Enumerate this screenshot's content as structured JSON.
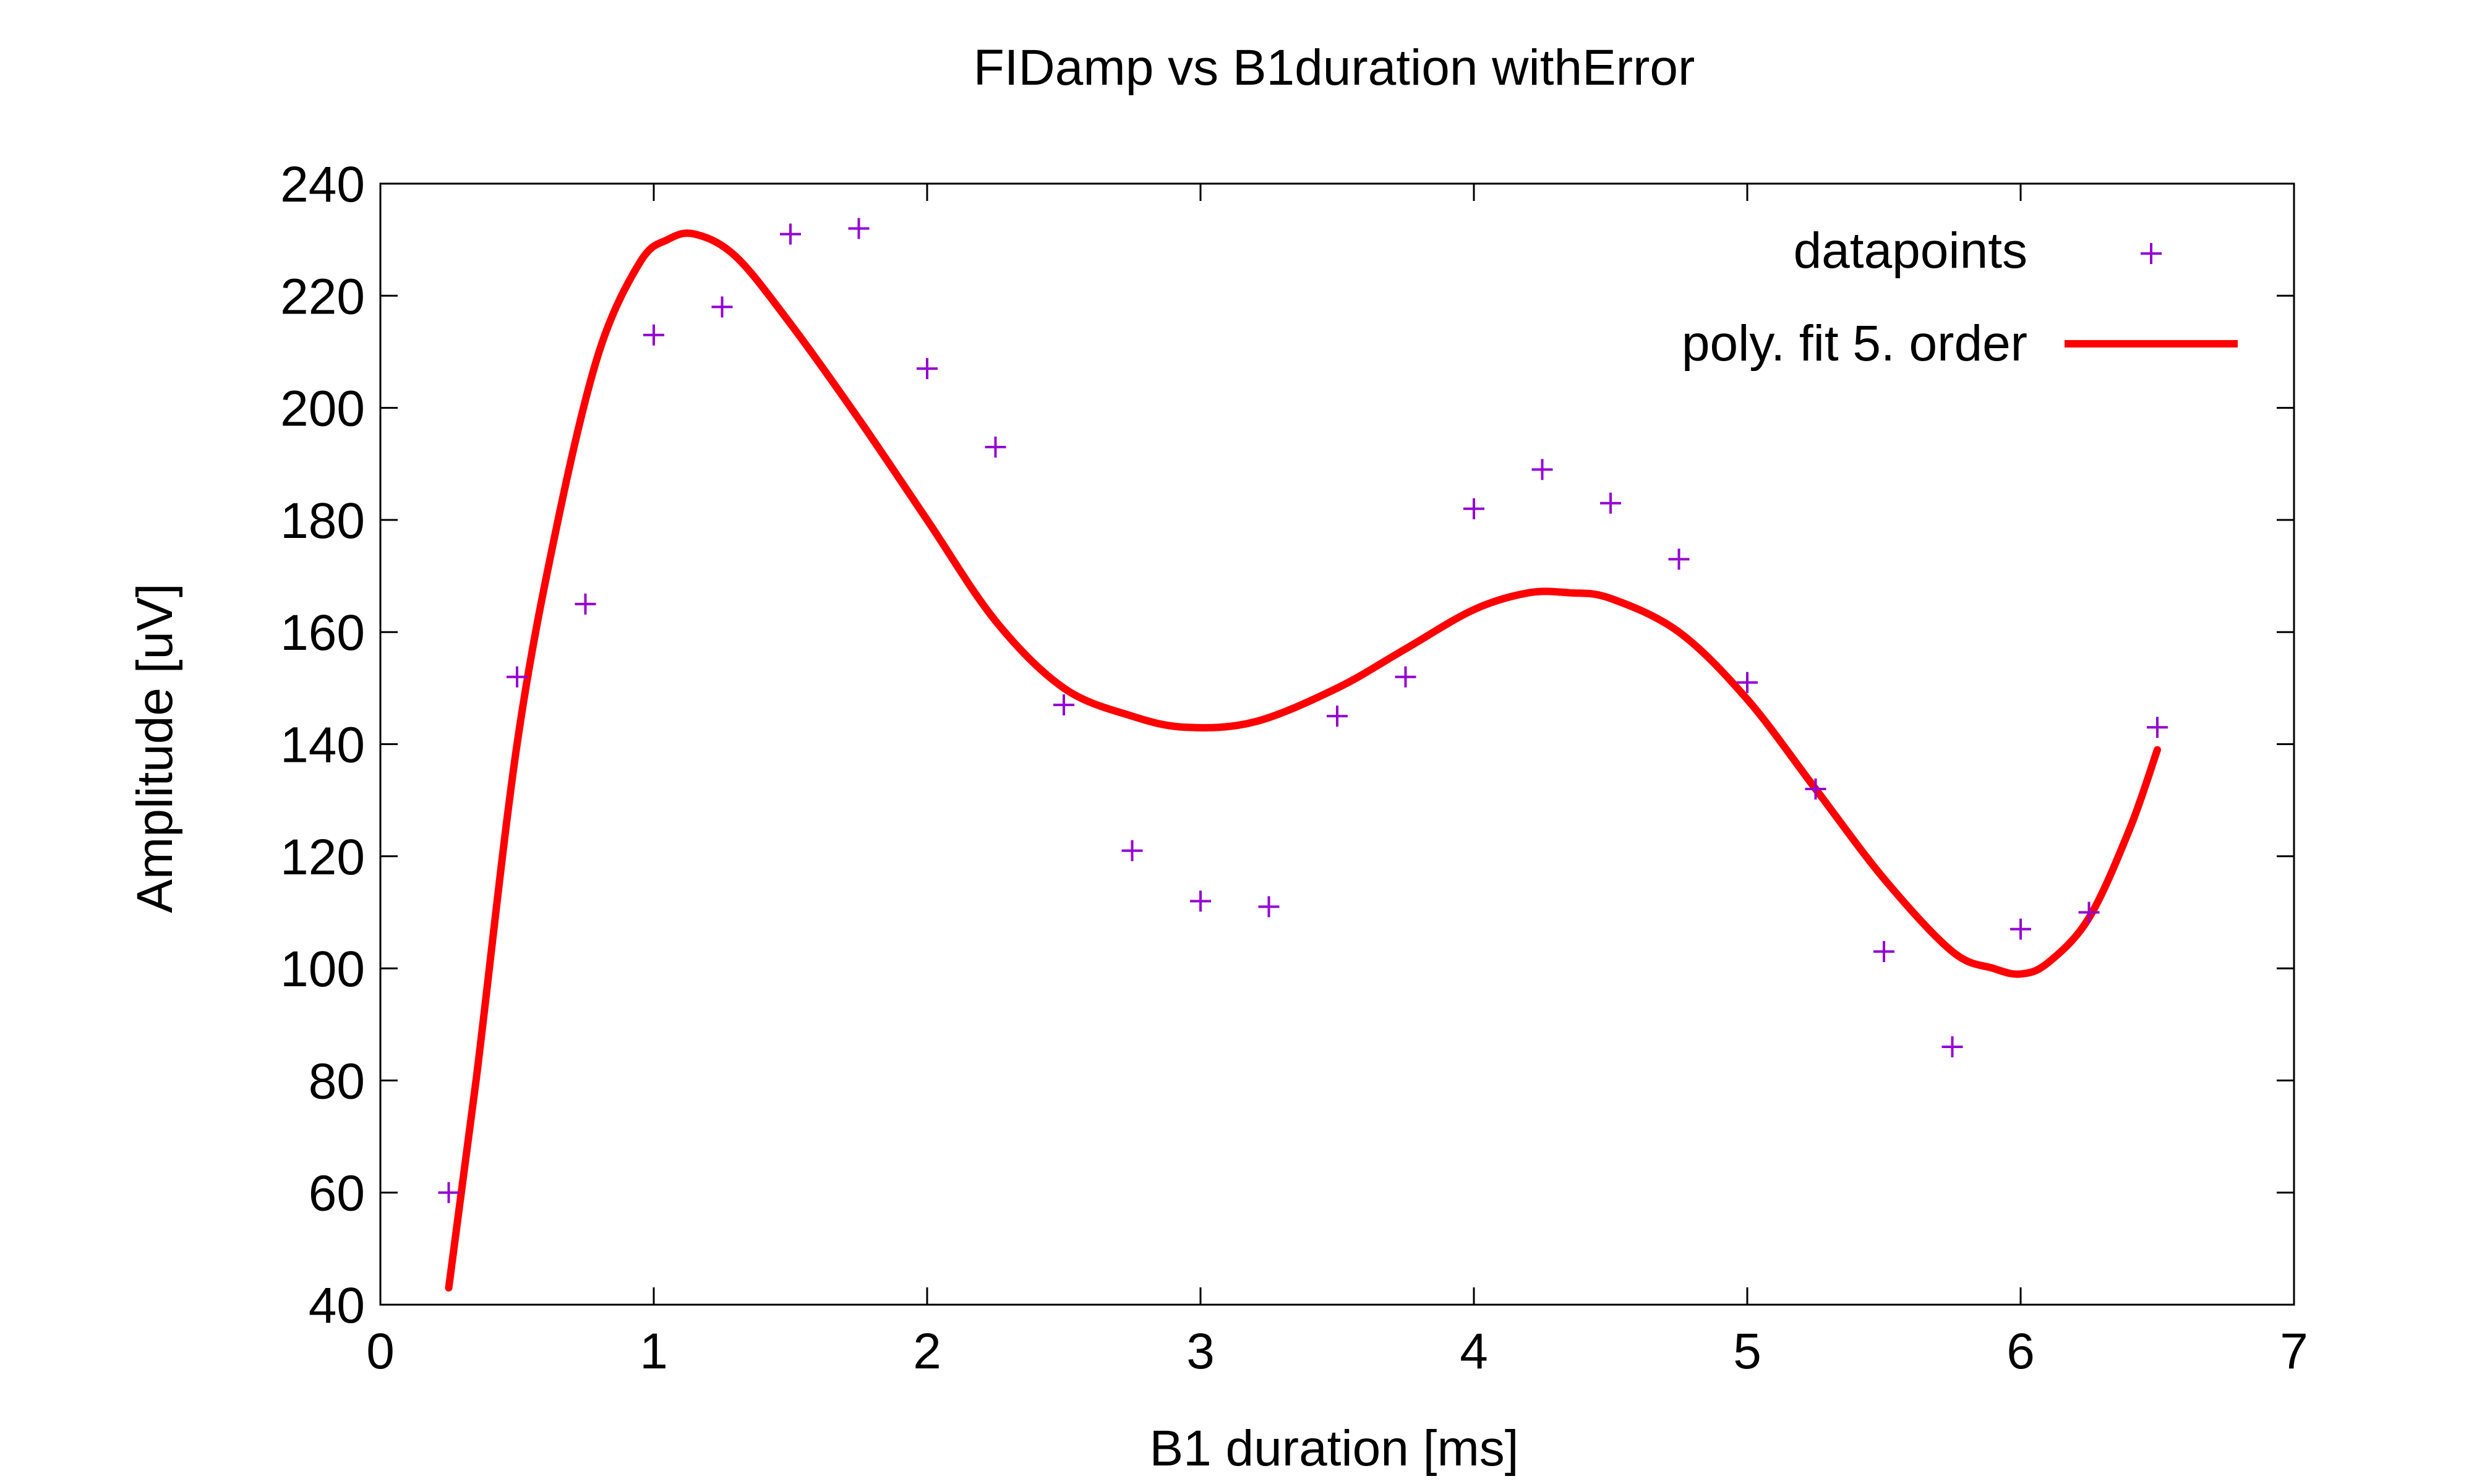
{
  "chart_data": {
    "type": "scatter",
    "title": "FIDamp vs B1duration withError",
    "xlabel": "B1 duration [ms]",
    "ylabel": "Amplitude [uV]",
    "xlim": [
      0,
      7
    ],
    "ylim": [
      40,
      240
    ],
    "x_ticks": [
      0,
      1,
      2,
      3,
      4,
      5,
      6,
      7
    ],
    "y_ticks": [
      40,
      60,
      80,
      100,
      120,
      140,
      160,
      180,
      200,
      220,
      240
    ],
    "grid": false,
    "legend_position": "top-right",
    "series": [
      {
        "name": "datapoints",
        "kind": "points",
        "marker": "plus",
        "color": "#9400d3",
        "x": [
          0.25,
          0.5,
          0.75,
          1.0,
          1.25,
          1.5,
          1.75,
          2.0,
          2.25,
          2.5,
          2.75,
          3.0,
          3.25,
          3.5,
          3.75,
          4.0,
          4.25,
          4.5,
          4.75,
          5.0,
          5.25,
          5.5,
          5.75,
          6.0,
          6.25,
          6.5
        ],
        "y": [
          60,
          152,
          165,
          213,
          218,
          231,
          232,
          207,
          193,
          147,
          121,
          112,
          111,
          145,
          152,
          182,
          189,
          183,
          173,
          151,
          132,
          103,
          86,
          107,
          110,
          143
        ]
      },
      {
        "name": "poly. fit 5. order",
        "kind": "line",
        "color": "#ff0000",
        "x": [
          0.25,
          0.35,
          0.5,
          0.65,
          0.8,
          0.95,
          1.05,
          1.15,
          1.3,
          1.5,
          1.75,
          2.0,
          2.25,
          2.5,
          2.75,
          2.95,
          3.2,
          3.5,
          3.75,
          4.0,
          4.2,
          4.35,
          4.5,
          4.75,
          5.0,
          5.25,
          5.5,
          5.75,
          5.9,
          6.0,
          6.1,
          6.25,
          6.4,
          6.5
        ],
        "y": [
          43,
          80,
          140,
          180,
          210,
          226,
          230,
          231,
          227,
          215,
          198,
          180,
          162,
          150,
          145,
          143,
          144,
          150,
          157,
          164,
          167,
          167,
          166,
          160,
          148,
          132,
          116,
          103,
          100,
          99,
          101,
          109,
          125,
          139
        ]
      }
    ]
  }
}
